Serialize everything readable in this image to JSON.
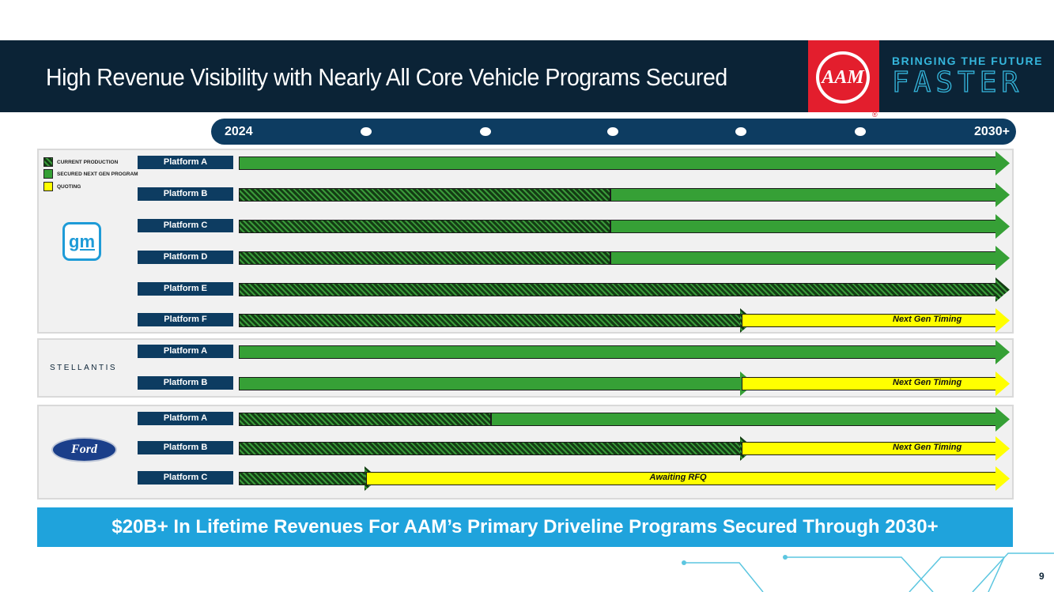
{
  "header": {
    "title": "High Revenue Visibility with Nearly All Core Vehicle Programs Secured",
    "logo": "AAM",
    "tagline_top": "BRINGING THE FUTURE",
    "tagline_bottom": "FASTER"
  },
  "timeline": {
    "start": "2024",
    "end": "2030+"
  },
  "legend": [
    {
      "label": "CURRENT PRODUCTION",
      "type": "hatch"
    },
    {
      "label": "SECURED NEXT GEN PROGRAM",
      "type": "green"
    },
    {
      "label": "QUOTING",
      "type": "yellow"
    }
  ],
  "colors": {
    "navy": "#0d3c61",
    "green": "#36a036",
    "yellow": "#ffff00",
    "banner": "#1fa3dc"
  },
  "groups": [
    {
      "oem": "gm",
      "logo_text": "gm",
      "rows": [
        {
          "label": "Platform A",
          "segments": [
            [
              "green",
              0,
              6
            ]
          ]
        },
        {
          "label": "Platform B",
          "segments": [
            [
              "hatch",
              0,
              3
            ],
            [
              "green",
              3,
              6
            ]
          ]
        },
        {
          "label": "Platform C",
          "segments": [
            [
              "hatch",
              0,
              3
            ],
            [
              "green",
              3,
              6
            ]
          ]
        },
        {
          "label": "Platform D",
          "segments": [
            [
              "hatch",
              0,
              3
            ],
            [
              "green",
              3,
              6
            ]
          ]
        },
        {
          "label": "Platform E",
          "segments": [
            [
              "hatch",
              0,
              6
            ]
          ]
        },
        {
          "label": "Platform F",
          "segments": [
            [
              "hatch",
              0,
              4
            ],
            [
              "yellow",
              4,
              6
            ]
          ],
          "note": "Next Gen Timing"
        }
      ]
    },
    {
      "oem": "stellantis",
      "logo_text": "STELLANTIS",
      "rows": [
        {
          "label": "Platform A",
          "segments": [
            [
              "green",
              0,
              6
            ]
          ]
        },
        {
          "label": "Platform B",
          "segments": [
            [
              "green",
              0,
              4
            ],
            [
              "yellow",
              4,
              6
            ]
          ],
          "note": "Next Gen Timing"
        }
      ]
    },
    {
      "oem": "ford",
      "logo_text": "Ford",
      "rows": [
        {
          "label": "Platform A",
          "segments": [
            [
              "hatch",
              0,
              2
            ],
            [
              "green",
              2,
              6
            ]
          ]
        },
        {
          "label": "Platform B",
          "segments": [
            [
              "hatch",
              0,
              4
            ],
            [
              "yellow",
              4,
              6
            ]
          ],
          "note": "Next Gen Timing"
        },
        {
          "label": "Platform C",
          "segments": [
            [
              "hatch",
              0,
              1
            ],
            [
              "yellow",
              1,
              6
            ]
          ],
          "note": "Awaiting RFQ"
        }
      ]
    }
  ],
  "banner": "$20B+ In Lifetime Revenues For AAM’s Primary Driveline Programs Secured Through 2030+",
  "page_number": "9"
}
